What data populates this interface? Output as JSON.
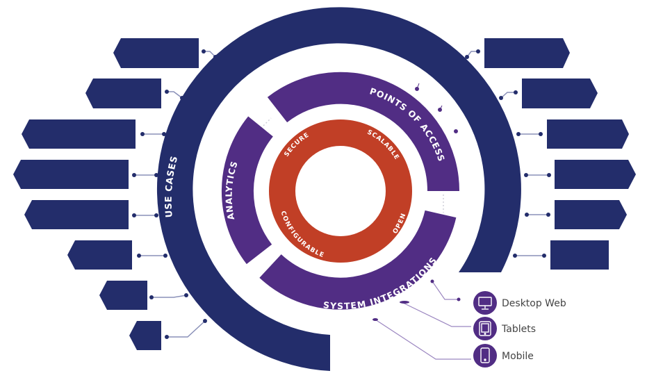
{
  "colors": {
    "navy": "#232d6b",
    "purple": "#512d84",
    "red": "#c13f26",
    "connector": "#8a90b8",
    "legend_line": "#9b86c0"
  },
  "rings": {
    "outer": {
      "label": "USE CASES"
    },
    "middle": [
      {
        "label": "POINTS OF ACCESS"
      },
      {
        "label": "ANALYTICS"
      },
      {
        "label": "SYSTEM INTEGRATIONS"
      }
    ],
    "inner": [
      {
        "label": "SECURE"
      },
      {
        "label": "SCALABLE"
      },
      {
        "label": "OPEN"
      },
      {
        "label": "CONFIGURABLE"
      }
    ]
  },
  "legend": [
    {
      "label": "Desktop Web",
      "icon": "desktop-icon"
    },
    {
      "label": "Tablets",
      "icon": "tablet-icon"
    },
    {
      "label": "Mobile",
      "icon": "mobile-icon"
    }
  ]
}
